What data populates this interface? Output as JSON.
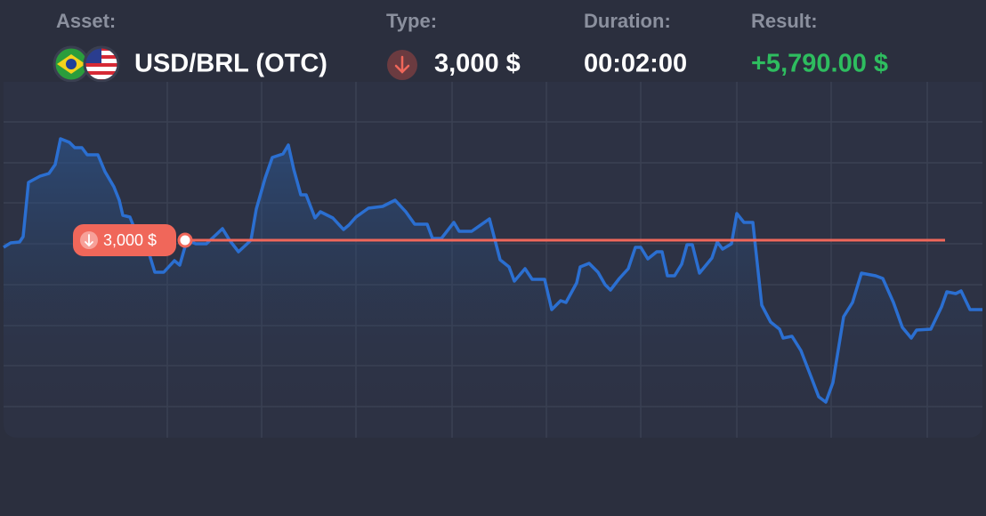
{
  "header": {
    "asset_label": "Asset:",
    "asset": "USD/BRL (OTC)",
    "type_label": "Type:",
    "amount": "3,000 $",
    "duration_label": "Duration:",
    "duration": "00:02:00",
    "result_label": "Result:",
    "result": "+5,790.00 $"
  }
}
